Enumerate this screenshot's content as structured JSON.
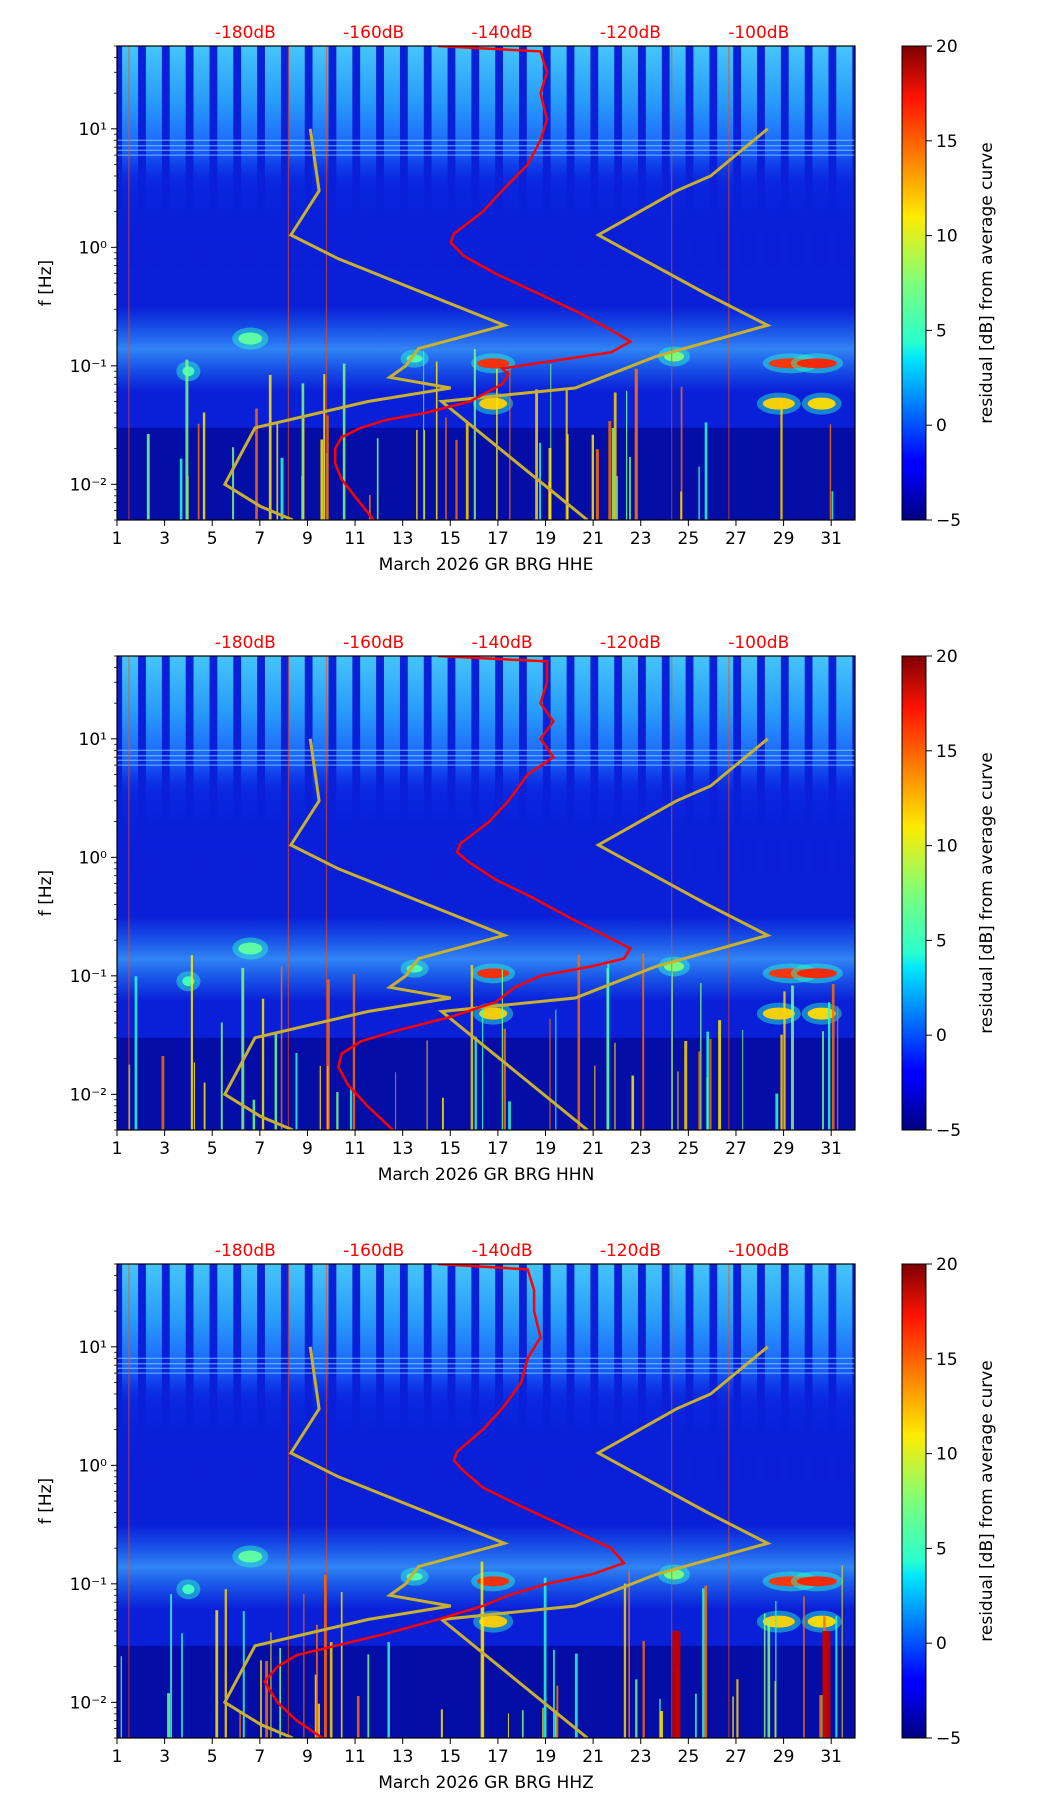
{
  "chart_data": [
    {
      "type": "heatmap",
      "title": "",
      "xlabel": "March 2026 GR BRG  HHE",
      "ylabel": "f [Hz]",
      "x_ticks": [
        "1",
        "3",
        "5",
        "7",
        "9",
        "11",
        "13",
        "15",
        "17",
        "19",
        "21",
        "23",
        "25",
        "27",
        "29",
        "31"
      ],
      "y_ticks": [
        "10⁻²",
        "10⁻¹",
        "10⁰",
        "10¹"
      ],
      "db_ticks": [
        "-180dB",
        "-160dB",
        "-140dB",
        "-120dB",
        "-100dB"
      ],
      "colorbar_label": "residual [dB] from average curve",
      "colorbar_ticks": [
        "−5",
        "0",
        "5",
        "10",
        "15",
        "20"
      ],
      "colorbar_range": [
        -5,
        20
      ],
      "xlim": [
        1,
        32
      ],
      "ylim_hz": [
        0.005,
        50
      ],
      "db_range": [
        -200,
        -85
      ],
      "noise_models": {
        "low_db": [
          [
            0.005,
            -172.6
          ],
          [
            0.0065,
            -177.6
          ],
          [
            0.01,
            -183.2
          ],
          [
            0.03,
            -178.5
          ],
          [
            0.05,
            -160.9
          ],
          [
            0.065,
            -148
          ],
          [
            0.08,
            -157.5
          ],
          [
            0.1,
            -155
          ],
          [
            0.14,
            -153
          ],
          [
            0.22,
            -139.6
          ],
          [
            0.8,
            -165.5
          ],
          [
            1.27,
            -172.9
          ],
          [
            3,
            -168.5
          ],
          [
            10,
            -169.9
          ]
        ],
        "high_db": [
          [
            0.005,
            -126.7
          ],
          [
            0.05,
            -149.4
          ],
          [
            0.065,
            -128.6
          ],
          [
            0.12,
            -116
          ],
          [
            0.22,
            -98.6
          ],
          [
            0.4,
            -108
          ],
          [
            1.27,
            -125
          ],
          [
            3,
            -112.8
          ],
          [
            4,
            -107.5
          ],
          [
            10,
            -98.6
          ]
        ]
      },
      "avg_curve_db": [
        [
          0.005,
          -160
        ],
        [
          0.008,
          -163
        ],
        [
          0.011,
          -165
        ],
        [
          0.015,
          -166
        ],
        [
          0.02,
          -166
        ],
        [
          0.025,
          -165
        ],
        [
          0.03,
          -162
        ],
        [
          0.035,
          -158
        ],
        [
          0.04,
          -152
        ],
        [
          0.05,
          -145
        ],
        [
          0.07,
          -140
        ],
        [
          0.085,
          -139
        ],
        [
          0.095,
          -140
        ],
        [
          0.11,
          -132
        ],
        [
          0.13,
          -123
        ],
        [
          0.16,
          -120
        ],
        [
          0.2,
          -123
        ],
        [
          0.28,
          -128
        ],
        [
          0.4,
          -134
        ],
        [
          0.6,
          -141
        ],
        [
          0.85,
          -146
        ],
        [
          1.1,
          -148
        ],
        [
          1.3,
          -147.5
        ],
        [
          2,
          -143
        ],
        [
          3,
          -140
        ],
        [
          5,
          -136
        ],
        [
          8,
          -134
        ],
        [
          12,
          -133
        ],
        [
          20,
          -134
        ],
        [
          30,
          -133
        ],
        [
          45,
          -134
        ],
        [
          50,
          -150
        ]
      ]
    },
    {
      "type": "heatmap",
      "title": "",
      "xlabel": "March 2026 GR BRG  HHN",
      "ylabel": "f [Hz]",
      "x_ticks": [
        "1",
        "3",
        "5",
        "7",
        "9",
        "11",
        "13",
        "15",
        "17",
        "19",
        "21",
        "23",
        "25",
        "27",
        "29",
        "31"
      ],
      "y_ticks": [
        "10⁻²",
        "10⁻¹",
        "10⁰",
        "10¹"
      ],
      "db_ticks": [
        "-180dB",
        "-160dB",
        "-140dB",
        "-120dB",
        "-100dB"
      ],
      "colorbar_label": "residual [dB] from average curve",
      "colorbar_ticks": [
        "−5",
        "0",
        "5",
        "10",
        "15",
        "20"
      ],
      "colorbar_range": [
        -5,
        20
      ],
      "xlim": [
        1,
        32
      ],
      "ylim_hz": [
        0.005,
        50
      ],
      "db_range": [
        -200,
        -85
      ],
      "noise_models": {
        "low_db": [
          [
            0.005,
            -172.6
          ],
          [
            0.0065,
            -177.6
          ],
          [
            0.01,
            -183.2
          ],
          [
            0.03,
            -178.5
          ],
          [
            0.05,
            -160.9
          ],
          [
            0.065,
            -148
          ],
          [
            0.08,
            -157.5
          ],
          [
            0.1,
            -155
          ],
          [
            0.14,
            -153
          ],
          [
            0.22,
            -139.6
          ],
          [
            0.8,
            -165.5
          ],
          [
            1.27,
            -172.9
          ],
          [
            3,
            -168.5
          ],
          [
            10,
            -169.9
          ]
        ],
        "high_db": [
          [
            0.005,
            -126.7
          ],
          [
            0.05,
            -149.4
          ],
          [
            0.065,
            -128.6
          ],
          [
            0.12,
            -116
          ],
          [
            0.22,
            -98.6
          ],
          [
            0.4,
            -108
          ],
          [
            1.27,
            -125
          ],
          [
            3,
            -112.8
          ],
          [
            4,
            -107.5
          ],
          [
            10,
            -98.6
          ]
        ]
      },
      "avg_curve_db": [
        [
          0.005,
          -157
        ],
        [
          0.008,
          -161
        ],
        [
          0.012,
          -164
        ],
        [
          0.017,
          -165.5
        ],
        [
          0.022,
          -165
        ],
        [
          0.028,
          -162
        ],
        [
          0.035,
          -156
        ],
        [
          0.045,
          -148
        ],
        [
          0.06,
          -141
        ],
        [
          0.08,
          -138
        ],
        [
          0.1,
          -134
        ],
        [
          0.12,
          -126
        ],
        [
          0.14,
          -121
        ],
        [
          0.17,
          -120
        ],
        [
          0.22,
          -124
        ],
        [
          0.3,
          -129
        ],
        [
          0.45,
          -135
        ],
        [
          0.65,
          -141
        ],
        [
          0.9,
          -145
        ],
        [
          1.1,
          -147
        ],
        [
          1.3,
          -146.5
        ],
        [
          2,
          -142
        ],
        [
          3,
          -139
        ],
        [
          5,
          -136
        ],
        [
          7,
          -132
        ],
        [
          10,
          -134
        ],
        [
          14,
          -132
        ],
        [
          20,
          -134
        ],
        [
          30,
          -133
        ],
        [
          45,
          -133
        ],
        [
          50,
          -150
        ]
      ]
    },
    {
      "type": "heatmap",
      "title": "",
      "xlabel": "March 2026 GR BRG  HHZ",
      "ylabel": "f [Hz]",
      "x_ticks": [
        "1",
        "3",
        "5",
        "7",
        "9",
        "11",
        "13",
        "15",
        "17",
        "19",
        "21",
        "23",
        "25",
        "27",
        "29",
        "31"
      ],
      "y_ticks": [
        "10⁻²",
        "10⁻¹",
        "10⁰",
        "10¹"
      ],
      "db_ticks": [
        "-180dB",
        "-160dB",
        "-140dB",
        "-120dB",
        "-100dB"
      ],
      "colorbar_label": "residual [dB] from average curve",
      "colorbar_ticks": [
        "−5",
        "0",
        "5",
        "10",
        "15",
        "20"
      ],
      "colorbar_range": [
        -5,
        20
      ],
      "xlim": [
        1,
        32
      ],
      "ylim_hz": [
        0.005,
        50
      ],
      "db_range": [
        -200,
        -85
      ],
      "noise_models": {
        "low_db": [
          [
            0.005,
            -172.6
          ],
          [
            0.0065,
            -177.6
          ],
          [
            0.01,
            -183.2
          ],
          [
            0.03,
            -178.5
          ],
          [
            0.05,
            -160.9
          ],
          [
            0.065,
            -148
          ],
          [
            0.08,
            -157.5
          ],
          [
            0.1,
            -155
          ],
          [
            0.14,
            -153
          ],
          [
            0.22,
            -139.6
          ],
          [
            0.8,
            -165.5
          ],
          [
            1.27,
            -172.9
          ],
          [
            3,
            -168.5
          ],
          [
            10,
            -169.9
          ]
        ],
        "high_db": [
          [
            0.005,
            -126.7
          ],
          [
            0.05,
            -149.4
          ],
          [
            0.065,
            -128.6
          ],
          [
            0.12,
            -116
          ],
          [
            0.22,
            -98.6
          ],
          [
            0.4,
            -108
          ],
          [
            1.27,
            -125
          ],
          [
            3,
            -112.8
          ],
          [
            4,
            -107.5
          ],
          [
            10,
            -98.6
          ]
        ]
      },
      "avg_curve_db": [
        [
          0.005,
          -168
        ],
        [
          0.007,
          -172
        ],
        [
          0.01,
          -175
        ],
        [
          0.015,
          -177
        ],
        [
          0.02,
          -175
        ],
        [
          0.025,
          -172
        ],
        [
          0.03,
          -166
        ],
        [
          0.038,
          -158
        ],
        [
          0.05,
          -150
        ],
        [
          0.065,
          -143
        ],
        [
          0.08,
          -139
        ],
        [
          0.1,
          -133
        ],
        [
          0.12,
          -126
        ],
        [
          0.15,
          -121
        ],
        [
          0.2,
          -123
        ],
        [
          0.3,
          -130
        ],
        [
          0.45,
          -137
        ],
        [
          0.65,
          -143
        ],
        [
          0.9,
          -146
        ],
        [
          1.1,
          -147.5
        ],
        [
          1.3,
          -147
        ],
        [
          2,
          -143
        ],
        [
          3,
          -140
        ],
        [
          5,
          -137
        ],
        [
          8,
          -136
        ],
        [
          12,
          -134
        ],
        [
          20,
          -135
        ],
        [
          30,
          -135
        ],
        [
          45,
          -136
        ],
        [
          50,
          -150
        ]
      ]
    }
  ]
}
